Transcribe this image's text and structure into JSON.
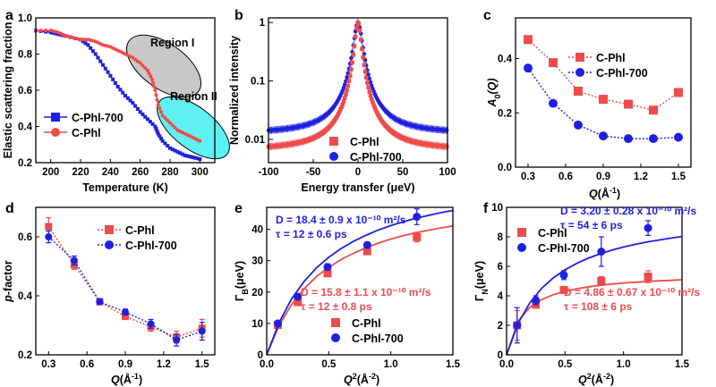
{
  "colors": {
    "red": "#ef4b4b",
    "blue": "#1f1fe0",
    "grayRegion": "#c8c8c8",
    "cyanRegion": "#5ff0f4",
    "axis": "#000000"
  },
  "chart_data": [
    {
      "panel": "a",
      "type": "line",
      "xlabel": "Temperature (K)",
      "ylabel": "Elastic scattering fraction",
      "xlim": [
        190,
        310
      ],
      "ylim": [
        0.2,
        1.0
      ],
      "xticks": [
        200,
        220,
        240,
        260,
        280,
        300
      ],
      "yticks": [
        0.2,
        0.4,
        0.6,
        0.8,
        1.0
      ],
      "annotations": [
        "Region I",
        "Region II"
      ],
      "legend_position": "bottom-left",
      "series": [
        {
          "name": "C-Phl-700",
          "color": "blue",
          "marker": "square",
          "x": [
            190,
            200,
            205,
            210,
            220,
            225,
            230,
            235,
            240,
            245,
            250,
            255,
            260,
            265,
            270,
            272,
            275,
            280,
            285,
            290,
            295,
            300
          ],
          "y": [
            0.93,
            0.92,
            0.91,
            0.9,
            0.88,
            0.85,
            0.8,
            0.74,
            0.68,
            0.62,
            0.57,
            0.53,
            0.48,
            0.44,
            0.4,
            0.36,
            0.32,
            0.28,
            0.26,
            0.24,
            0.23,
            0.22
          ]
        },
        {
          "name": "C-Phl",
          "color": "red",
          "marker": "circle",
          "x": [
            190,
            200,
            205,
            210,
            215,
            220,
            225,
            230,
            235,
            240,
            245,
            250,
            255,
            260,
            265,
            268,
            270,
            272,
            275,
            280,
            285,
            290,
            295,
            300
          ],
          "y": [
            0.93,
            0.93,
            0.92,
            0.9,
            0.89,
            0.88,
            0.88,
            0.87,
            0.85,
            0.84,
            0.82,
            0.8,
            0.78,
            0.75,
            0.71,
            0.66,
            0.6,
            0.52,
            0.46,
            0.42,
            0.38,
            0.36,
            0.34,
            0.32
          ]
        }
      ]
    },
    {
      "panel": "b",
      "type": "scatter",
      "yscale": "log",
      "xlabel": "Energy transfer (μeV)",
      "ylabel": "Normalized intensity",
      "xlim": [
        -100,
        100
      ],
      "ylim": [
        0.004,
        1.2
      ],
      "xticks": [
        -100,
        -50,
        0,
        50,
        100
      ],
      "ytick_labels": [
        "0.01",
        "0.1",
        "1"
      ],
      "legend_position": "bottom-center",
      "series": [
        {
          "name": "C-Phl",
          "color": "red",
          "marker": "square",
          "peak": 1.0,
          "gamma": 3.2,
          "background": 0.0065
        },
        {
          "name": "C-Phl-700",
          "color": "blue",
          "marker": "circle",
          "peak": 1.0,
          "gamma": 4.2,
          "background": 0.0125
        }
      ]
    },
    {
      "panel": "c",
      "type": "line",
      "xlabel": "Q(Å⁻¹)",
      "ylabel": "A₀(Q)",
      "xlim": [
        0.2,
        1.6
      ],
      "ylim": [
        0.0,
        0.55
      ],
      "xticks": [
        0.3,
        0.6,
        0.9,
        1.2,
        1.5
      ],
      "yticks": [
        0.0,
        0.2,
        0.4
      ],
      "legend_position": "top-right",
      "categories": [
        0.3,
        0.5,
        0.7,
        0.9,
        1.1,
        1.3,
        1.5
      ],
      "series": [
        {
          "name": "C-Phl",
          "color": "red",
          "marker": "square",
          "values": [
            0.47,
            0.385,
            0.28,
            0.25,
            0.232,
            0.21,
            0.275
          ]
        },
        {
          "name": "C-Phl-700",
          "color": "blue",
          "marker": "circle",
          "values": [
            0.365,
            0.235,
            0.155,
            0.115,
            0.105,
            0.105,
            0.11
          ]
        }
      ]
    },
    {
      "panel": "d",
      "type": "line",
      "xlabel": "Q(Å⁻¹)",
      "ylabel": "p-factor",
      "xlim": [
        0.2,
        1.6
      ],
      "ylim": [
        0.2,
        0.7
      ],
      "xticks": [
        0.3,
        0.6,
        0.9,
        1.2,
        1.5
      ],
      "yticks": [
        0.2,
        0.4,
        0.6
      ],
      "legend_position": "top-right",
      "categories": [
        0.3,
        0.5,
        0.7,
        0.9,
        1.1,
        1.3,
        1.5
      ],
      "series": [
        {
          "name": "C-Phl",
          "color": "red",
          "marker": "square",
          "values": [
            0.635,
            0.505,
            0.38,
            0.33,
            0.295,
            0.26,
            0.29
          ],
          "errors": [
            0.03,
            0.015,
            0.01,
            0.01,
            0.015,
            0.02,
            0.03
          ]
        },
        {
          "name": "C-Phl-700",
          "color": "blue",
          "marker": "circle",
          "values": [
            0.6,
            0.52,
            0.38,
            0.345,
            0.305,
            0.25,
            0.28
          ],
          "errors": [
            0.02,
            0.015,
            0.01,
            0.01,
            0.015,
            0.02,
            0.03
          ]
        }
      ]
    },
    {
      "panel": "e",
      "type": "scatter",
      "xlabel": "Q²(Å⁻²)",
      "ylabel": "Γ_B (μeV)",
      "xlim": [
        0.0,
        1.5
      ],
      "ylim": [
        0,
        47
      ],
      "xticks": [
        0.0,
        0.5,
        1.0,
        1.5
      ],
      "yticks": [
        0,
        10,
        20,
        30,
        40
      ],
      "legend_position": "bottom-right",
      "annotations": [
        {
          "lines": [
            "D = 18.4 ± 0.9 x 10⁻¹⁰ m²/s",
            "τ = 12 ± 0.6 ps"
          ],
          "color": "blue"
        },
        {
          "lines": [
            "D = 15.8 ± 1.1 x 10⁻¹⁰ m²/s",
            "τ = 12 ± 0.8 ps"
          ],
          "color": "red"
        }
      ],
      "series": [
        {
          "name": "C-Phl",
          "color": "red",
          "marker": "square",
          "x": [
            0.09,
            0.25,
            0.49,
            0.81,
            1.21
          ],
          "y": [
            9.5,
            16.8,
            26.0,
            33.0,
            37.5
          ],
          "errors": [
            0.8,
            0.8,
            1.0,
            1.0,
            1.5
          ],
          "fit": {
            "D": 15.8,
            "tau": 12,
            "x": [
              0.0,
              0.1,
              0.2,
              0.3,
              0.4,
              0.5,
              0.6,
              0.7,
              0.8,
              0.9,
              1.0,
              1.1,
              1.2,
              1.3,
              1.4,
              1.5
            ],
            "y": [
              0,
              9.4,
              16.0,
              21.0,
              24.9,
              27.9,
              30.4,
              32.4,
              34.1,
              35.6,
              36.9,
              38.0,
              38.9,
              39.7,
              40.4,
              41.1
            ]
          }
        },
        {
          "name": "C-Phl-700",
          "color": "blue",
          "marker": "circle",
          "x": [
            0.09,
            0.25,
            0.49,
            0.81,
            1.21
          ],
          "y": [
            10.0,
            18.5,
            28.0,
            35.0,
            44.0
          ],
          "errors": [
            0.8,
            0.8,
            1.0,
            1.0,
            2.5
          ],
          "fit": {
            "D": 18.4,
            "tau": 12,
            "x": [
              0.0,
              0.1,
              0.2,
              0.3,
              0.4,
              0.5,
              0.6,
              0.7,
              0.8,
              0.9,
              1.0,
              1.1,
              1.2,
              1.3,
              1.4,
              1.5
            ],
            "y": [
              0,
              10.3,
              17.8,
              23.3,
              27.7,
              31.1,
              33.9,
              36.2,
              38.1,
              39.8,
              41.2,
              42.4,
              43.5,
              44.4,
              45.3,
              46.0
            ]
          }
        }
      ]
    },
    {
      "panel": "f",
      "type": "scatter",
      "xlabel": "Q²(Å⁻²)",
      "ylabel": "Γ_N (μeV)",
      "xlim": [
        0.0,
        1.5
      ],
      "ylim": [
        0,
        10
      ],
      "xticks": [
        0.0,
        0.5,
        1.0,
        1.5
      ],
      "yticks": [
        0,
        2,
        4,
        6,
        8,
        10
      ],
      "legend_position": "top-left",
      "annotations": [
        {
          "lines": [
            "D = 3.20 ± 0.28 x 10⁻¹⁰ m²/s",
            "τ = 54 ± 6 ps"
          ],
          "color": "blue"
        },
        {
          "lines": [
            "D = 4.86 ± 0.67 x 10⁻¹⁰ m²/s",
            "τ = 108 ± 6 ps"
          ],
          "color": "red"
        }
      ],
      "series": [
        {
          "name": "C-Phl",
          "color": "red",
          "marker": "square",
          "x": [
            0.09,
            0.25,
            0.49,
            0.81,
            1.21
          ],
          "y": [
            2.0,
            3.4,
            4.4,
            5.0,
            5.3
          ],
          "errors": [
            1.0,
            0.2,
            0.2,
            0.3,
            0.4
          ],
          "fit": {
            "D": 4.86,
            "tau": 108,
            "x": [
              0.0,
              0.1,
              0.2,
              0.3,
              0.4,
              0.5,
              0.6,
              0.7,
              0.8,
              0.9,
              1.0,
              1.1,
              1.2,
              1.3,
              1.4,
              1.5
            ],
            "y": [
              0,
              2.3,
              3.23,
              3.75,
              4.08,
              4.31,
              4.48,
              4.61,
              4.71,
              4.8,
              4.87,
              4.92,
              4.97,
              5.02,
              5.05,
              5.09
            ]
          }
        },
        {
          "name": "C-Phl-700",
          "color": "blue",
          "marker": "circle",
          "x": [
            0.09,
            0.25,
            0.49,
            0.81,
            1.21
          ],
          "y": [
            2.0,
            3.7,
            5.4,
            7.0,
            8.6
          ],
          "errors": [
            1.2,
            0.3,
            0.3,
            1.0,
            0.5
          ],
          "fit": {
            "D": 3.2,
            "tau": 54,
            "x": [
              0.0,
              0.1,
              0.2,
              0.3,
              0.4,
              0.5,
              0.6,
              0.7,
              0.8,
              0.9,
              1.0,
              1.1,
              1.2,
              1.3,
              1.4,
              1.5
            ],
            "y": [
              0,
              2.16,
              3.54,
              4.51,
              5.22,
              5.77,
              6.2,
              6.56,
              6.85,
              7.1,
              7.31,
              7.49,
              7.65,
              7.78,
              7.91,
              8.02
            ]
          }
        }
      ]
    }
  ],
  "labels": {
    "a": "a",
    "b": "b",
    "c": "c",
    "d": "d",
    "e": "e",
    "f": "f"
  }
}
